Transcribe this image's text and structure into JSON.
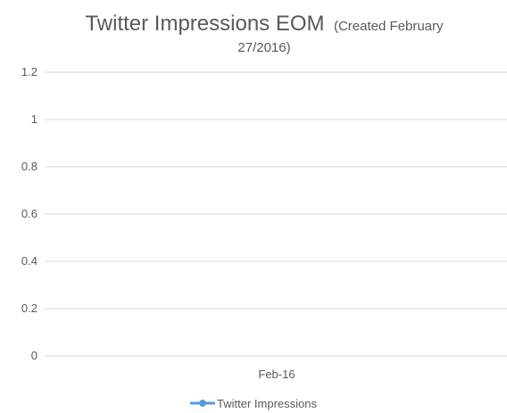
{
  "chart_data": {
    "type": "line",
    "title": "Twitter Impressions EOM",
    "title_suffix_line1": "(Created February",
    "title_suffix_line2": "27/2016)",
    "categories": [
      "Feb-16"
    ],
    "series": [
      {
        "name": "Twitter Impressions",
        "values": [
          null
        ],
        "color": "#5b9bd5"
      }
    ],
    "ylim": [
      0,
      1.2
    ],
    "yticks": [
      "0",
      "0.2",
      "0.4",
      "0.6",
      "0.8",
      "1",
      "1.2"
    ],
    "grid": true,
    "legend_position": "bottom"
  }
}
